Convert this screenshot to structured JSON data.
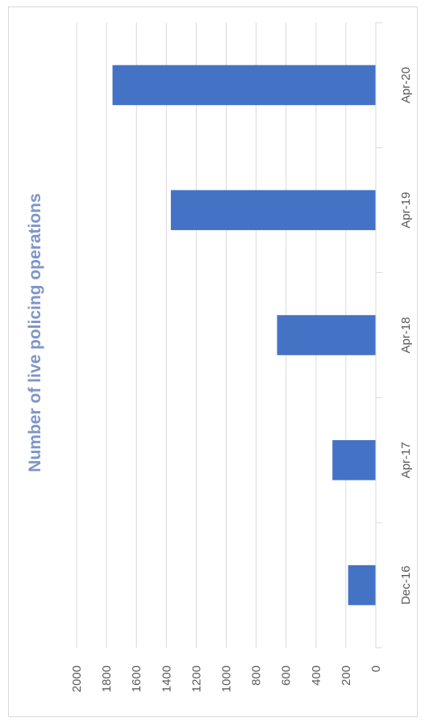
{
  "chart_data": {
    "type": "bar",
    "orientation": "vertical (rotated 90° in image)",
    "title": "Number of live policing operations",
    "categories": [
      "Dec-16",
      "Apr-17",
      "Apr-18",
      "Apr-19",
      "Apr-20"
    ],
    "series": [
      {
        "values": [
          185,
          290,
          660,
          1370,
          1760
        ]
      }
    ],
    "ylim": [
      0,
      2000
    ],
    "yticks": [
      0,
      200,
      400,
      600,
      800,
      1000,
      1200,
      1400,
      1600,
      1800,
      2000
    ],
    "grid": true,
    "legend": "none",
    "bar_color": "#4472c4",
    "title_color": "#7f95c7",
    "grid_color": "#d9d9d9",
    "tick_color": "#595959"
  }
}
